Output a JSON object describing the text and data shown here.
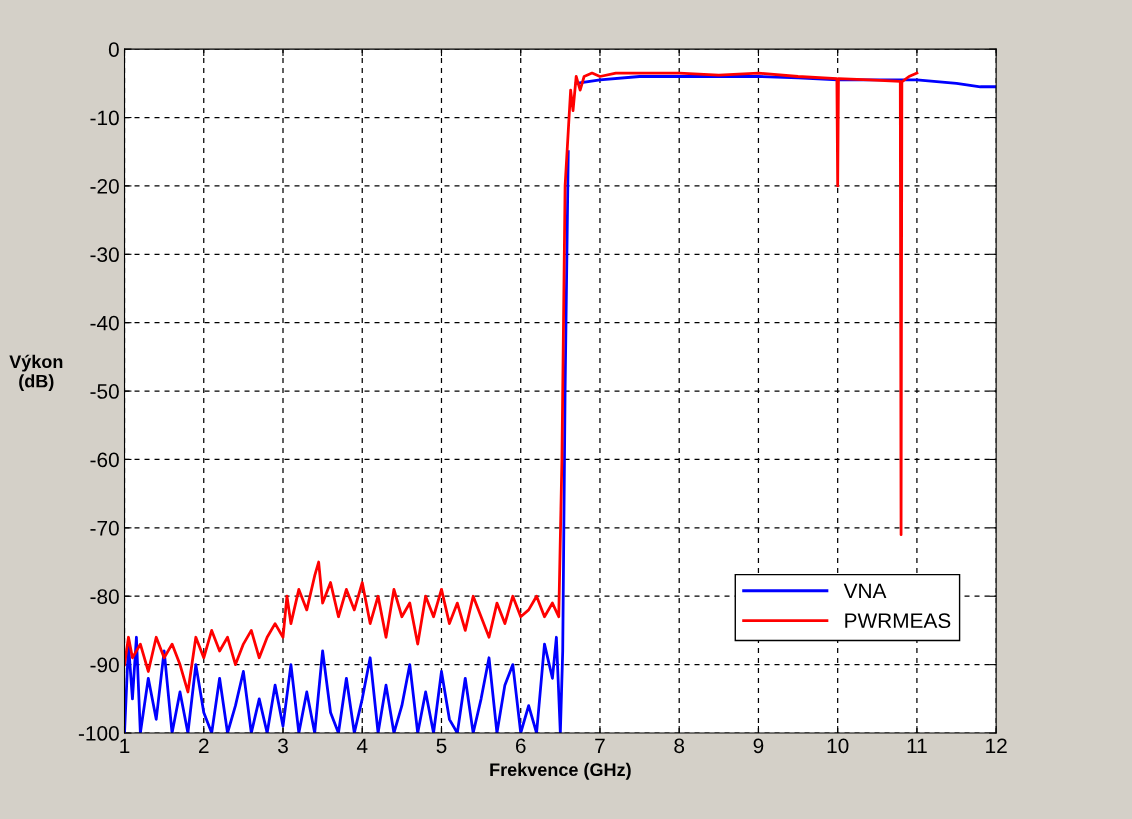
{
  "chart_data": {
    "type": "line",
    "xlabel": "Frekvence (GHz)",
    "ylabel": "Výkon\n(dB)",
    "xlim": [
      1,
      12
    ],
    "ylim": [
      -100,
      0
    ],
    "xticks": [
      1,
      2,
      3,
      4,
      5,
      6,
      7,
      8,
      9,
      10,
      11,
      12
    ],
    "yticks": [
      -100,
      -90,
      -80,
      -70,
      -60,
      -50,
      -40,
      -30,
      -20,
      -10,
      0
    ],
    "grid": true,
    "legend": "bottom right",
    "line_style": "solid",
    "marker": "none",
    "series": [
      {
        "name": "VNA",
        "color": "#0000ff",
        "x": [
          1.0,
          1.05,
          1.1,
          1.15,
          1.2,
          1.3,
          1.4,
          1.5,
          1.6,
          1.7,
          1.8,
          1.9,
          2.0,
          2.1,
          2.2,
          2.3,
          2.4,
          2.5,
          2.6,
          2.7,
          2.8,
          2.9,
          3.0,
          3.1,
          3.2,
          3.3,
          3.4,
          3.5,
          3.6,
          3.7,
          3.8,
          3.9,
          4.0,
          4.1,
          4.2,
          4.3,
          4.4,
          4.5,
          4.6,
          4.7,
          4.8,
          4.9,
          5.0,
          5.1,
          5.2,
          5.3,
          5.4,
          5.5,
          5.6,
          5.7,
          5.8,
          5.9,
          6.0,
          6.1,
          6.2,
          6.3,
          6.4,
          6.45,
          6.5,
          6.53,
          6.56,
          6.6,
          6.65,
          6.7,
          7.0,
          7.5,
          8.0,
          8.5,
          9.0,
          9.5,
          10.0,
          10.5,
          11.0,
          11.5,
          11.8,
          12.0
        ],
        "values": [
          -100,
          -87,
          -95,
          -86,
          -100,
          -92,
          -98,
          -88,
          -100,
          -94,
          -100,
          -90,
          -97,
          -100,
          -92,
          -100,
          -96,
          -91,
          -100,
          -95,
          -100,
          -93,
          -99,
          -90,
          -100,
          -94,
          -100,
          -88,
          -97,
          -100,
          -92,
          -100,
          -95,
          -89,
          -100,
          -93,
          -100,
          -96,
          -90,
          -100,
          -94,
          -100,
          -91,
          -98,
          -100,
          -92,
          -100,
          -95,
          -89,
          -100,
          -93,
          -90,
          -100,
          -96,
          -100,
          -87,
          -92,
          -86,
          -100,
          -88,
          -50,
          -15,
          null,
          -5,
          -4.5,
          -4,
          -4,
          -4,
          -4,
          -4.2,
          -4.5,
          -4.5,
          -4.5,
          -5,
          -5.5,
          -5.5
        ]
      },
      {
        "name": "PWRMEAS",
        "color": "#ff0000",
        "x": [
          1.0,
          1.05,
          1.1,
          1.2,
          1.3,
          1.4,
          1.5,
          1.6,
          1.7,
          1.8,
          1.9,
          2.0,
          2.1,
          2.2,
          2.3,
          2.4,
          2.5,
          2.6,
          2.7,
          2.8,
          2.9,
          3.0,
          3.05,
          3.1,
          3.2,
          3.3,
          3.4,
          3.45,
          3.5,
          3.6,
          3.7,
          3.8,
          3.9,
          4.0,
          4.1,
          4.2,
          4.3,
          4.4,
          4.5,
          4.6,
          4.7,
          4.8,
          4.9,
          5.0,
          5.1,
          5.2,
          5.3,
          5.4,
          5.5,
          5.6,
          5.7,
          5.8,
          5.9,
          6.0,
          6.1,
          6.2,
          6.3,
          6.4,
          6.48,
          6.52,
          6.56,
          6.6,
          6.63,
          6.66,
          6.7,
          6.75,
          6.8,
          6.9,
          7.0,
          7.2,
          7.5,
          8.0,
          8.5,
          9.0,
          9.5,
          9.99,
          10.0,
          10.01,
          10.4,
          10.79,
          10.8,
          10.81,
          10.9,
          11.0
        ],
        "values": [
          -90,
          -86,
          -89,
          -87,
          -91,
          -86,
          -89,
          -87,
          -90,
          -94,
          -86,
          -89,
          -85,
          -88,
          -86,
          -90,
          -87,
          -85,
          -89,
          -86,
          -84,
          -86,
          -80,
          -84,
          -79,
          -82,
          -77,
          -75,
          -81,
          -78,
          -83,
          -79,
          -82,
          -78,
          -84,
          -80,
          -86,
          -79,
          -83,
          -81,
          -87,
          -80,
          -83,
          -79,
          -84,
          -81,
          -85,
          -80,
          -83,
          -86,
          -81,
          -84,
          -80,
          -83,
          -82,
          -80,
          -83,
          -81,
          -83,
          -60,
          -20,
          -12,
          -6,
          -9,
          -4,
          -6,
          -4,
          -3.5,
          -4,
          -3.5,
          -3.5,
          -3.5,
          -3.8,
          -3.5,
          -4,
          -4.3,
          -20,
          -4.3,
          -4.5,
          -4.7,
          -71,
          -4.8,
          -4,
          -3.5
        ]
      }
    ]
  }
}
